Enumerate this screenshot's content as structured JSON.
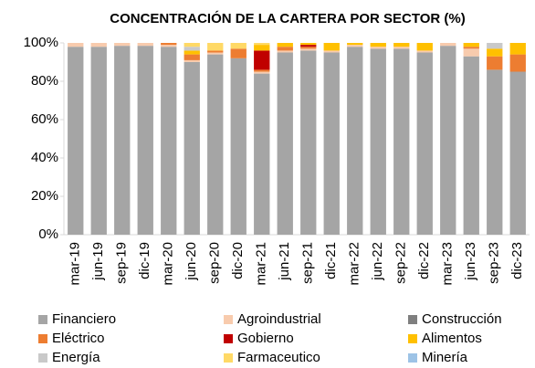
{
  "chart_data": {
    "type": "stacked_bar",
    "title": "CONCENTRACIÓN DE LA CARTERA POR SECTOR (%)",
    "categories": [
      "mar-19",
      "jun-19",
      "sep-19",
      "dic-19",
      "mar-20",
      "jun-20",
      "sep-20",
      "dic-20",
      "mar-21",
      "jun-21",
      "sep-21",
      "dic-21",
      "mar-22",
      "jun-22",
      "sep-22",
      "dic-22",
      "mar-23",
      "jun-23",
      "sep-23",
      "dic-23"
    ],
    "series": [
      {
        "name": "Financiero",
        "color": "#a5a5a5",
        "values": [
          98,
          98,
          98.5,
          98.5,
          98,
          90,
          94,
          92,
          84,
          95,
          96,
          95,
          98,
          97,
          97,
          95,
          98.5,
          93,
          86,
          85
        ]
      },
      {
        "name": "Agroindustrial",
        "color": "#f8cbad",
        "values": [
          2,
          2,
          1.5,
          1.5,
          1,
          1,
          1,
          0,
          1,
          1,
          1,
          1,
          1,
          1,
          1,
          1,
          1.5,
          4,
          0,
          0
        ]
      },
      {
        "name": "Construcción",
        "color": "#7f7f7f",
        "values": [
          0,
          0,
          0,
          0,
          0,
          0,
          0,
          0,
          0,
          0,
          0,
          0,
          0,
          0,
          0,
          0,
          0,
          0,
          0,
          0
        ]
      },
      {
        "name": "Eléctrico",
        "color": "#ed7d31",
        "values": [
          0,
          0,
          0,
          0,
          1,
          3,
          1,
          5,
          1,
          2,
          1,
          0,
          0,
          0,
          0,
          0,
          0,
          1,
          7,
          9
        ]
      },
      {
        "name": "Gobierno",
        "color": "#c00000",
        "values": [
          0,
          0,
          0,
          0,
          0,
          0,
          0,
          0,
          10,
          0,
          1,
          0,
          0,
          0,
          0,
          0,
          0,
          0,
          0,
          0
        ]
      },
      {
        "name": "Alimentos",
        "color": "#ffc000",
        "values": [
          0,
          0,
          0,
          0,
          0,
          2,
          0,
          0,
          3,
          2,
          1,
          4,
          1,
          2,
          2,
          4,
          0,
          2,
          4,
          6
        ]
      },
      {
        "name": "Energía",
        "color": "#c9c9c9",
        "values": [
          0,
          0,
          0,
          0,
          0,
          2,
          0,
          0,
          0,
          0,
          0,
          0,
          0,
          0,
          0,
          0,
          0,
          0,
          3,
          0
        ]
      },
      {
        "name": "Farmaceutico",
        "color": "#ffd966",
        "values": [
          0,
          0,
          0,
          0,
          0,
          2,
          4,
          3,
          1,
          0,
          0,
          0,
          0,
          0,
          0,
          0,
          0,
          0,
          0,
          0
        ]
      },
      {
        "name": "Minería",
        "color": "#9dc3e6",
        "values": [
          0,
          0,
          0,
          0,
          0,
          0,
          0,
          0,
          0,
          0,
          0,
          0,
          0,
          0,
          0,
          0,
          0,
          0,
          0,
          0
        ]
      }
    ],
    "ylim": [
      0,
      100
    ],
    "yticks": [
      {
        "value": 0,
        "label": "0%"
      },
      {
        "value": 20,
        "label": "20%"
      },
      {
        "value": 40,
        "label": "40%"
      },
      {
        "value": 60,
        "label": "60%"
      },
      {
        "value": 80,
        "label": "80%"
      },
      {
        "value": 100,
        "label": "100%"
      }
    ],
    "legend": "bottom"
  }
}
